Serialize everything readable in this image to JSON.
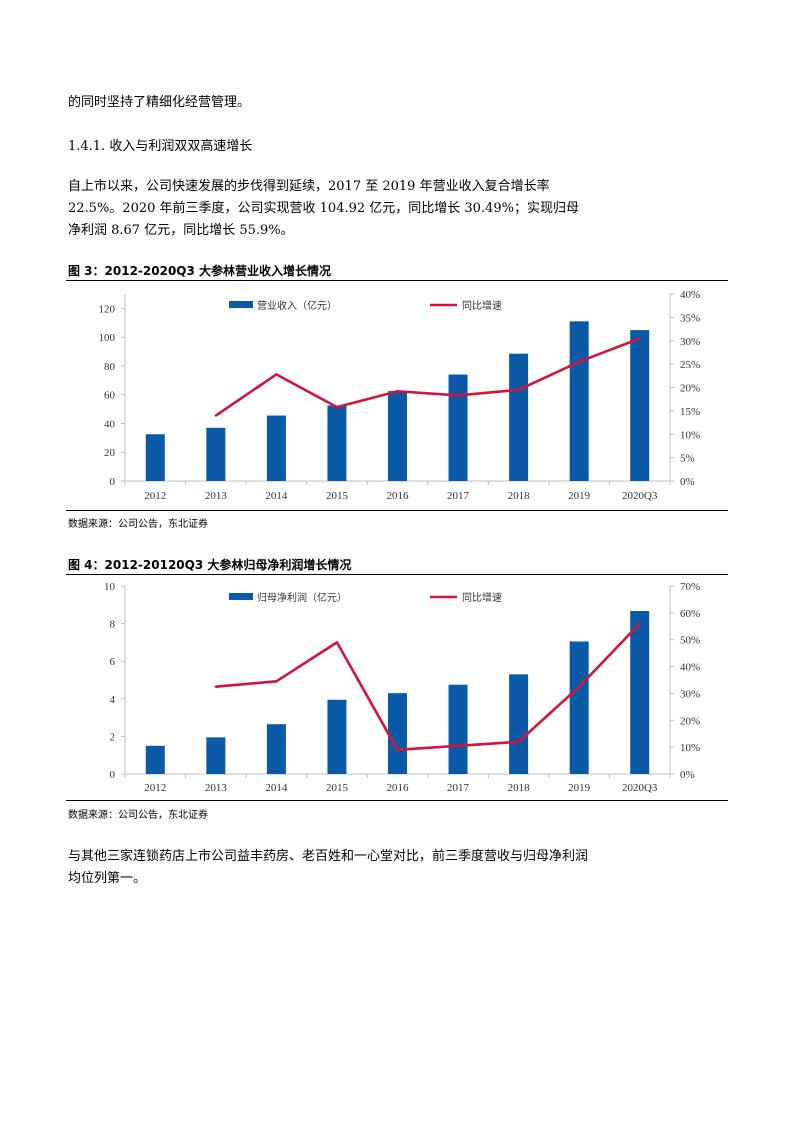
{
  "body": {
    "line0": "的同时坚持了精细化经营管理。",
    "section_heading": "1.4.1.   收入与利润双双高速增长",
    "para1": "自上市以来，公司快速发展的步伐得到延续，2017 至 2019 年营业收入复合增长率 22.5%。2020 年前三季度，公司实现营收 104.92 亿元，同比增长 30.49%；实现归母净利润 8.67 亿元，同比增长 55.9%。",
    "para_end": "与其他三家连锁药店上市公司益丰药房、老百姓和一心堂对比，前三季度营收与归母净利润均位列第一。"
  },
  "figures": [
    {
      "title": "图 3：2012-2020Q3 大参林营业收入增长情况",
      "source": "数据来源：公司公告，东北证券"
    },
    {
      "title": "图 4：2012-20120Q3 大参林归母净利润增长情况",
      "source": "数据来源：公司公告，东北证券"
    }
  ],
  "colors": {
    "bar": "#0a5aa8",
    "line": "#d6123a",
    "axis": "#bfbfbf"
  },
  "chart_data": [
    {
      "type": "bar",
      "categories": [
        "2012",
        "2013",
        "2014",
        "2015",
        "2016",
        "2017",
        "2018",
        "2019",
        "2020Q3"
      ],
      "series": [
        {
          "name": "营业收入（亿元）",
          "type": "bar",
          "axis": "left",
          "values": [
            32.5,
            37,
            45.5,
            52.5,
            62.5,
            74,
            88.5,
            111,
            104.9
          ]
        },
        {
          "name": "同比增速",
          "type": "line",
          "axis": "right",
          "values": [
            null,
            14,
            22.8,
            15.8,
            19.2,
            18.3,
            19.5,
            25.5,
            30.5
          ]
        }
      ],
      "ylim_left": [
        0,
        130
      ],
      "yticks_left": [
        0,
        20,
        40,
        60,
        80,
        100,
        120
      ],
      "ytick_labels_left": [
        "0",
        "20",
        "40",
        "60",
        "80",
        "100",
        "120"
      ],
      "ylim_right": [
        0,
        40
      ],
      "yticks_right": [
        0,
        5,
        10,
        15,
        20,
        25,
        30,
        35,
        40
      ],
      "ytick_labels_right": [
        "0%",
        "5%",
        "10%",
        "15%",
        "20%",
        "25%",
        "30%",
        "35%",
        "40%"
      ],
      "legend_position": "top"
    },
    {
      "type": "bar",
      "categories": [
        "2012",
        "2013",
        "2014",
        "2015",
        "2016",
        "2017",
        "2018",
        "2019",
        "2020Q3"
      ],
      "series": [
        {
          "name": "归母净利润（亿元）",
          "type": "bar",
          "axis": "left",
          "values": [
            1.5,
            1.95,
            2.65,
            3.95,
            4.3,
            4.75,
            5.3,
            7.05,
            8.67
          ]
        },
        {
          "name": "同比增速",
          "type": "line",
          "axis": "right",
          "values": [
            null,
            32.5,
            34.5,
            49,
            9,
            10.5,
            12,
            32.5,
            56
          ]
        }
      ],
      "ylim_left": [
        0,
        10
      ],
      "yticks_left": [
        0,
        2,
        4,
        6,
        8,
        10
      ],
      "ytick_labels_left": [
        "0",
        "2",
        "4",
        "6",
        "8",
        "10"
      ],
      "ylim_right": [
        0,
        70
      ],
      "yticks_right": [
        0,
        10,
        20,
        30,
        40,
        50,
        60,
        70
      ],
      "ytick_labels_right": [
        "0%",
        "10%",
        "20%",
        "30%",
        "40%",
        "50%",
        "60%",
        "70%"
      ],
      "legend_position": "top"
    }
  ]
}
